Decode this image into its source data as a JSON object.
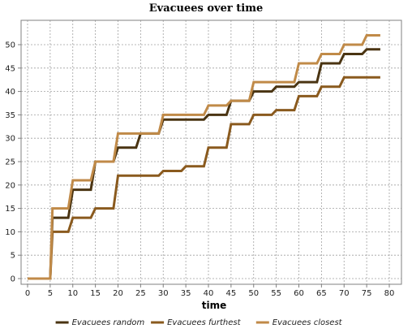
{
  "chart_data": {
    "type": "line",
    "title": "Evacuees over time",
    "xlabel": "time",
    "ylabel": "",
    "xlim": [
      0,
      80
    ],
    "ylim": [
      0,
      55
    ],
    "xticks": [
      0,
      5,
      10,
      15,
      20,
      25,
      30,
      35,
      40,
      45,
      50,
      55,
      60,
      65,
      70,
      75,
      80
    ],
    "yticks": [
      0,
      5,
      10,
      15,
      20,
      25,
      30,
      35,
      40,
      45,
      50
    ],
    "grid": true,
    "legend_position": "bottom",
    "step": true,
    "series": [
      {
        "name": "Evacuees random",
        "color": "#4a3412",
        "points": [
          [
            0,
            0
          ],
          [
            5,
            0
          ],
          [
            5.5,
            13
          ],
          [
            9,
            13
          ],
          [
            10,
            19
          ],
          [
            14,
            19
          ],
          [
            15,
            25
          ],
          [
            19,
            25
          ],
          [
            20,
            28
          ],
          [
            24,
            28
          ],
          [
            25,
            31
          ],
          [
            29,
            31
          ],
          [
            30,
            34
          ],
          [
            39,
            34
          ],
          [
            40,
            35
          ],
          [
            44,
            35
          ],
          [
            45,
            38
          ],
          [
            49,
            38
          ],
          [
            50,
            40
          ],
          [
            54,
            40
          ],
          [
            55,
            41
          ],
          [
            59,
            41
          ],
          [
            60,
            42
          ],
          [
            64,
            42
          ],
          [
            65,
            46
          ],
          [
            69,
            46
          ],
          [
            70,
            48
          ],
          [
            74,
            48
          ],
          [
            75,
            49
          ],
          [
            78,
            49
          ]
        ]
      },
      {
        "name": "Evacuees furthest",
        "color": "#8a5a1e",
        "points": [
          [
            0,
            0
          ],
          [
            5,
            0
          ],
          [
            5.5,
            10
          ],
          [
            9,
            10
          ],
          [
            10,
            13
          ],
          [
            14,
            13
          ],
          [
            15,
            15
          ],
          [
            19,
            15
          ],
          [
            20,
            22
          ],
          [
            29,
            22
          ],
          [
            30,
            23
          ],
          [
            34,
            23
          ],
          [
            35,
            24
          ],
          [
            39,
            24
          ],
          [
            40,
            28
          ],
          [
            44,
            28
          ],
          [
            45,
            33
          ],
          [
            49,
            33
          ],
          [
            50,
            35
          ],
          [
            54,
            35
          ],
          [
            55,
            36
          ],
          [
            59,
            36
          ],
          [
            60,
            39
          ],
          [
            64,
            39
          ],
          [
            65,
            41
          ],
          [
            69,
            41
          ],
          [
            70,
            43
          ],
          [
            78,
            43
          ]
        ]
      },
      {
        "name": "Evacuees closest",
        "color": "#c08a48",
        "points": [
          [
            0,
            0
          ],
          [
            5,
            0
          ],
          [
            5.5,
            15
          ],
          [
            9,
            15
          ],
          [
            10,
            21
          ],
          [
            14,
            21
          ],
          [
            15,
            25
          ],
          [
            19,
            25
          ],
          [
            20,
            31
          ],
          [
            24,
            31
          ],
          [
            25,
            31
          ],
          [
            29,
            31
          ],
          [
            30,
            35
          ],
          [
            39,
            35
          ],
          [
            40,
            37
          ],
          [
            44,
            37
          ],
          [
            45,
            38
          ],
          [
            49,
            38
          ],
          [
            50,
            42
          ],
          [
            59,
            42
          ],
          [
            60,
            46
          ],
          [
            64,
            46
          ],
          [
            65,
            48
          ],
          [
            69,
            48
          ],
          [
            70,
            50
          ],
          [
            74,
            50
          ],
          [
            75,
            52
          ],
          [
            78,
            52
          ]
        ]
      }
    ]
  }
}
